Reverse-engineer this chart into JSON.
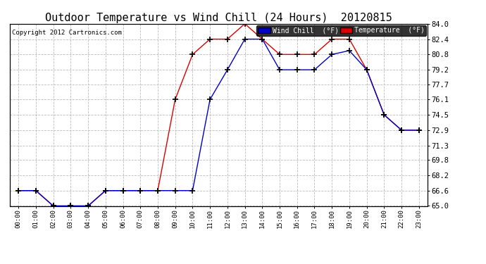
{
  "title": "Outdoor Temperature vs Wind Chill (24 Hours)  20120815",
  "copyright": "Copyright 2012 Cartronics.com",
  "ylabel_right_ticks": [
    65.0,
    66.6,
    68.2,
    69.8,
    71.3,
    72.9,
    74.5,
    76.1,
    77.7,
    79.2,
    80.8,
    82.4,
    84.0
  ],
  "xlabels": [
    "00:00",
    "01:00",
    "02:00",
    "03:00",
    "04:00",
    "05:00",
    "06:00",
    "07:00",
    "08:00",
    "09:00",
    "10:00",
    "11:00",
    "12:00",
    "13:00",
    "14:00",
    "15:00",
    "16:00",
    "17:00",
    "18:00",
    "19:00",
    "20:00",
    "21:00",
    "22:00",
    "23:00"
  ],
  "temp_color": "#dd0000",
  "wind_color": "#0000cc",
  "bg_color": "#ffffff",
  "grid_color": "#bbbbbb",
  "temperature": [
    66.6,
    66.6,
    65.0,
    65.0,
    65.0,
    66.6,
    66.6,
    66.6,
    66.6,
    76.1,
    80.8,
    82.4,
    82.4,
    84.0,
    82.4,
    80.8,
    80.8,
    80.8,
    82.4,
    82.4,
    79.2,
    74.5,
    72.9,
    72.9
  ],
  "wind_chill": [
    66.6,
    66.6,
    65.0,
    65.0,
    65.0,
    66.6,
    66.6,
    66.6,
    66.6,
    66.6,
    66.6,
    76.1,
    79.2,
    82.4,
    82.4,
    79.2,
    79.2,
    79.2,
    80.8,
    81.2,
    79.2,
    74.5,
    72.9,
    72.9
  ],
  "ylim": [
    65.0,
    84.0
  ],
  "title_fontsize": 11,
  "legend_wind_label": "Wind Chill  (°F)",
  "legend_temp_label": "Temperature  (°F)"
}
